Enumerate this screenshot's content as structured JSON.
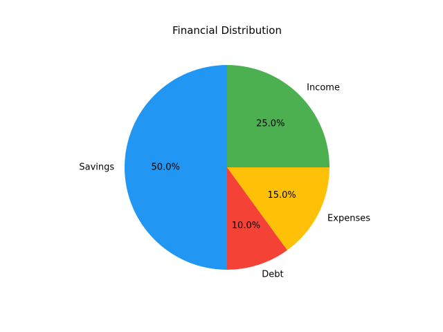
{
  "chart_data": {
    "type": "pie",
    "title": "Financial Distribution",
    "slices": [
      {
        "label": "Income",
        "value": 25.0,
        "pct_label": "25.0%",
        "color": "#4caf50"
      },
      {
        "label": "Expenses",
        "value": 15.0,
        "pct_label": "15.0%",
        "color": "#ffc107"
      },
      {
        "label": "Debt",
        "value": 10.0,
        "pct_label": "10.0%",
        "color": "#f44336"
      },
      {
        "label": "Savings",
        "value": 50.0,
        "pct_label": "50.0%",
        "color": "#2196f3"
      }
    ],
    "start_angle_deg": 90,
    "direction": "clockwise",
    "legend": "none"
  }
}
